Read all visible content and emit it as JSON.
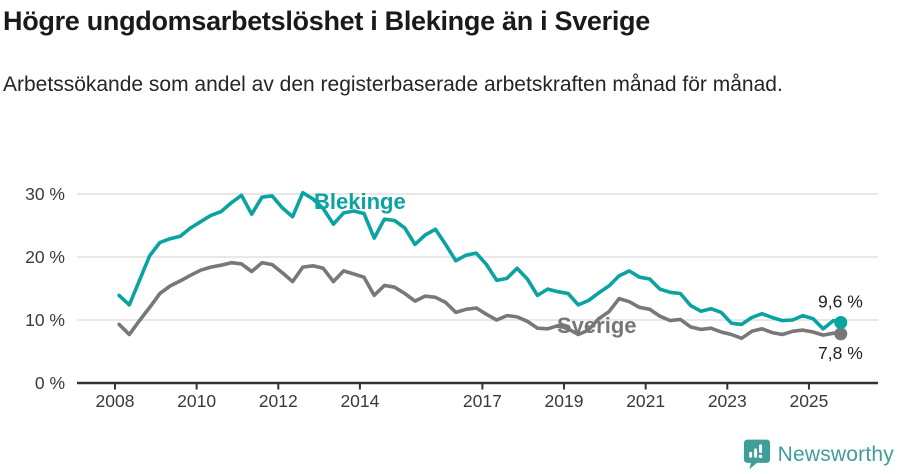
{
  "header": {
    "title": "Högre ungdomsarbetslöshet i Blekinge än i Sverige",
    "subtitle": "Arbetssökande som andel av den registerbaserade arbetskraften månad för månad."
  },
  "colors": {
    "blekinge_line": "#0ba3a1",
    "sverige_line": "#787878",
    "grid": "#d9d9d9",
    "axis": "#333333",
    "axis_text": "#3a3a3a",
    "title_text": "#1a1a1a",
    "value_text": "#222222",
    "brand_teal": "#3f9f98"
  },
  "chart_data": {
    "type": "line",
    "title": "Högre ungdomsarbetslöshet i Blekinge än i Sverige",
    "subtitle": "Arbetssökande som andel av den registerbaserade arbetskraften månad för månad.",
    "xlabel": "",
    "ylabel": "",
    "grid": "horizontal",
    "legend_position": "inline-labels-on-lines",
    "x_ticks": [
      2008,
      2010,
      2012,
      2014,
      2017,
      2019,
      2021,
      2023,
      2025
    ],
    "y_axis": {
      "ticks": [
        0,
        10,
        20,
        30
      ],
      "tick_suffix": " %",
      "min": 0,
      "max": 32
    },
    "x": [
      2008.1,
      2008.35,
      2008.6,
      2008.85,
      2009.1,
      2009.35,
      2009.6,
      2009.85,
      2010.1,
      2010.35,
      2010.6,
      2010.85,
      2011.1,
      2011.35,
      2011.6,
      2011.85,
      2012.1,
      2012.35,
      2012.6,
      2012.85,
      2013.1,
      2013.35,
      2013.6,
      2013.85,
      2014.1,
      2014.35,
      2014.6,
      2014.85,
      2015.1,
      2015.35,
      2015.6,
      2015.85,
      2016.1,
      2016.35,
      2016.6,
      2016.85,
      2017.1,
      2017.35,
      2017.6,
      2017.85,
      2018.1,
      2018.35,
      2018.6,
      2018.85,
      2019.1,
      2019.35,
      2019.6,
      2019.85,
      2020.1,
      2020.35,
      2020.6,
      2020.85,
      2021.1,
      2021.35,
      2021.6,
      2021.85,
      2022.1,
      2022.35,
      2022.6,
      2022.85,
      2023.1,
      2023.35,
      2023.6,
      2023.85,
      2024.1,
      2024.35,
      2024.6,
      2024.85,
      2025.1,
      2025.35,
      2025.6,
      2025.78
    ],
    "series": [
      {
        "name": "Blekinge",
        "color": "#0ba3a1",
        "end_label": "9,6 %",
        "end_value": 9.6,
        "values": [
          13.9,
          12.4,
          16.3,
          20.2,
          22.3,
          22.9,
          23.3,
          24.6,
          25.6,
          26.6,
          27.2,
          28.6,
          29.8,
          26.8,
          29.5,
          29.7,
          27.8,
          26.4,
          30.2,
          29.2,
          27.7,
          25.2,
          27.0,
          27.3,
          26.9,
          23.0,
          26.0,
          25.8,
          24.6,
          22.0,
          23.5,
          24.4,
          22.0,
          19.4,
          20.3,
          20.6,
          18.8,
          16.3,
          16.6,
          18.2,
          16.5,
          13.9,
          14.9,
          14.5,
          14.2,
          12.4,
          13.1,
          14.3,
          15.4,
          17.0,
          17.8,
          16.8,
          16.5,
          14.9,
          14.4,
          14.2,
          12.3,
          11.4,
          11.8,
          11.2,
          9.5,
          9.3,
          10.4,
          11.0,
          10.4,
          9.9,
          10.0,
          10.7,
          10.2,
          8.6,
          9.9,
          9.6
        ]
      },
      {
        "name": "Sverige",
        "color": "#787878",
        "end_label": "7,8 %",
        "end_value": 7.8,
        "values": [
          9.3,
          7.7,
          9.9,
          12.0,
          14.2,
          15.4,
          16.2,
          17.1,
          17.9,
          18.4,
          18.7,
          19.1,
          18.9,
          17.7,
          19.1,
          18.8,
          17.5,
          16.1,
          18.4,
          18.6,
          18.2,
          16.1,
          17.8,
          17.3,
          16.8,
          13.9,
          15.5,
          15.2,
          14.2,
          13.0,
          13.8,
          13.6,
          12.8,
          11.2,
          11.7,
          11.9,
          10.9,
          10.0,
          10.7,
          10.5,
          9.8,
          8.7,
          8.6,
          9.1,
          8.6,
          7.7,
          8.4,
          10.2,
          11.3,
          13.4,
          12.9,
          12.0,
          11.7,
          10.6,
          9.9,
          10.1,
          8.9,
          8.5,
          8.7,
          8.1,
          7.7,
          7.1,
          8.2,
          8.6,
          8.0,
          7.7,
          8.2,
          8.4,
          8.1,
          7.6,
          7.9,
          7.8
        ]
      }
    ]
  },
  "footer": {
    "brand": "Newsworthy"
  }
}
